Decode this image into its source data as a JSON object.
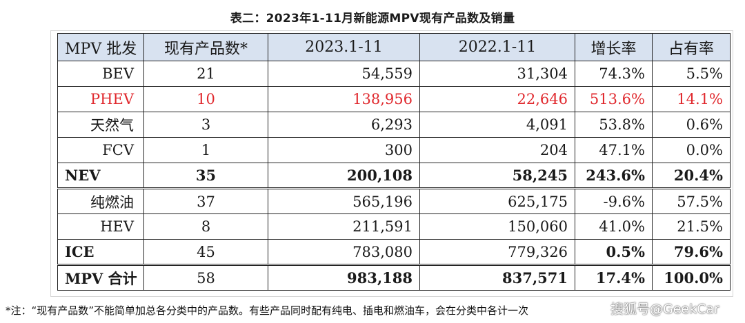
{
  "title": "表二：2023年1-11月新能源MPV现有产品数及销量",
  "table": {
    "headers": [
      "MPV 批发",
      "现有产品数*",
      "2023.1-11",
      "2022.1-11",
      "增长率",
      "占有率"
    ],
    "rows": [
      {
        "cells": [
          "BEV",
          "21",
          "54,559",
          "31,304",
          "74.3%",
          "5.5%"
        ]
      },
      {
        "cells": [
          "PHEV",
          "10",
          "138,956",
          "22,646",
          "513.6%",
          "14.1%"
        ]
      },
      {
        "cells": [
          "天然气",
          "3",
          "6,293",
          "4,091",
          "53.8%",
          "0.6%"
        ]
      },
      {
        "cells": [
          "FCV",
          "1",
          "300",
          "204",
          "47.1%",
          "0.0%"
        ]
      },
      {
        "cells": [
          "NEV",
          "35",
          "200,108",
          "58,245",
          "243.6%",
          "20.4%"
        ]
      },
      {
        "cells": [
          "纯燃油",
          "37",
          "565,196",
          "625,175",
          "-9.6%",
          "57.5%"
        ]
      },
      {
        "cells": [
          "HEV",
          "8",
          "211,591",
          "150,060",
          "41.0%",
          "21.5%"
        ]
      },
      {
        "cells": [
          "ICE",
          "45",
          "783,080",
          "779,326",
          "0.5%",
          "79.6%"
        ]
      },
      {
        "cells": [
          "MPV 合计",
          "58",
          "983,188",
          "837,571",
          "17.4%",
          "100.0%"
        ]
      }
    ]
  },
  "footnote": "*注：“现有产品数”不能简单加总各分类中的产品数。有些产品同时配有纯电、插电和燃油车，会在分类中各计一次",
  "watermark": "搜狐号@GeekCar",
  "colors": {
    "header_bg": "#d8e2f0",
    "highlight_text": "#e0282d"
  }
}
